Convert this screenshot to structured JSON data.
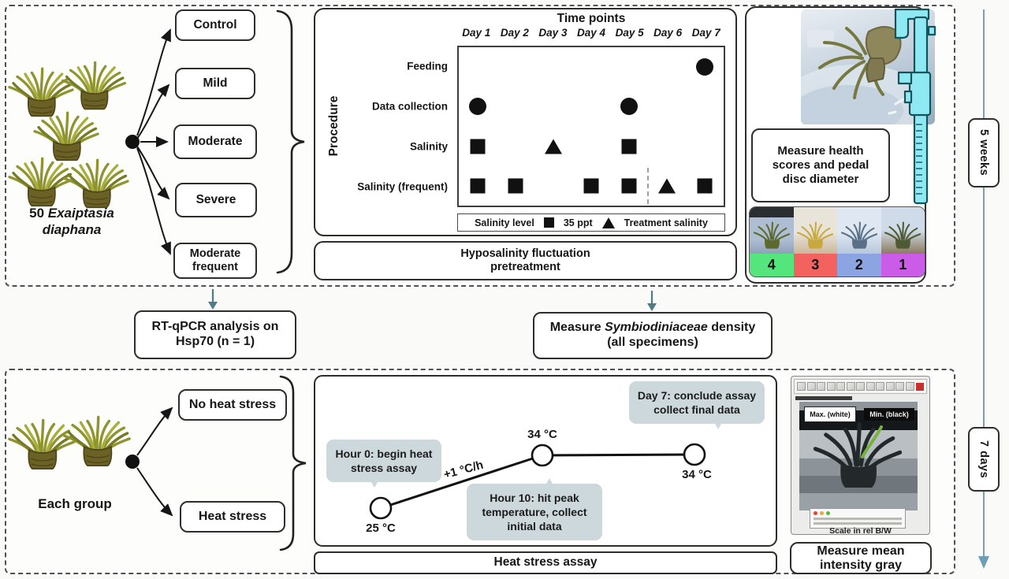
{
  "pretreatment": {
    "subject_count": "50",
    "species_line1": "Exaiptasia",
    "species_line2": "diaphana",
    "groups": [
      "Control",
      "Mild",
      "Moderate",
      "Severe",
      "Moderate frequent"
    ],
    "footer_line1": "Hyposalinity fluctuation",
    "footer_line2": "pretreatment"
  },
  "chart_data": [
    {
      "type": "scatter",
      "title": "Time points",
      "ylabel": "Procedure",
      "categories": [
        "Day 1",
        "Day 2",
        "Day 3",
        "Day 4",
        "Day 5",
        "Day 6",
        "Day 7"
      ],
      "rows": [
        "Feeding",
        "Data collection",
        "Salinity",
        "Salinity (frequent)"
      ],
      "marker_color": "#111111",
      "points": [
        {
          "row": "Feeding",
          "day": "Day 7",
          "marker": "circle"
        },
        {
          "row": "Data collection",
          "day": "Day 1",
          "marker": "circle"
        },
        {
          "row": "Data collection",
          "day": "Day 5",
          "marker": "circle"
        },
        {
          "row": "Salinity",
          "day": "Day 1",
          "marker": "square"
        },
        {
          "row": "Salinity",
          "day": "Day 3",
          "marker": "triangle"
        },
        {
          "row": "Salinity",
          "day": "Day 5",
          "marker": "square"
        },
        {
          "row": "Salinity (frequent)",
          "day": "Day 1",
          "marker": "square"
        },
        {
          "row": "Salinity (frequent)",
          "day": "Day 2",
          "marker": "square"
        },
        {
          "row": "Salinity (frequent)",
          "day": "Day 4",
          "marker": "square"
        },
        {
          "row": "Salinity (frequent)",
          "day": "Day 5",
          "marker": "square"
        },
        {
          "row": "Salinity (frequent)",
          "day": "Day 6",
          "marker": "triangle"
        },
        {
          "row": "Salinity (frequent)",
          "day": "Day 7",
          "marker": "square"
        }
      ],
      "divider": {
        "row": "Salinity (frequent)",
        "between": [
          "Day 5",
          "Day 6"
        ],
        "style": "dashed"
      },
      "legend": {
        "title": "Salinity level",
        "position": "bottom",
        "items": [
          {
            "marker": "square",
            "label": "35 ppt"
          },
          {
            "marker": "triangle",
            "label": "Treatment salinity"
          }
        ]
      }
    },
    {
      "type": "line",
      "title": "Heat stress assay",
      "x": [
        "Hour 0",
        "Hour 10",
        "Day 7"
      ],
      "y_temperature_c": [
        25,
        34,
        34
      ],
      "point_labels": [
        "25 °C",
        "34 °C",
        "34 °C"
      ],
      "ramp_annotation": "+1 °C/h"
    }
  ],
  "measure_health": {
    "caption_lines": [
      "Measure health",
      "scores and pedal",
      "disc diameter"
    ],
    "scores": [
      {
        "value": "4",
        "color": "#55e57d"
      },
      {
        "value": "3",
        "color": "#f2625f"
      },
      {
        "value": "2",
        "color": "#8da4e3"
      },
      {
        "value": "1",
        "color": "#cb5ce8"
      }
    ]
  },
  "interim": {
    "rtqpcr_line1": "RT-qPCR analysis on",
    "rtqpcr_line2": "Hsp70 (n = 1)",
    "density_prefix": "Measure ",
    "density_genus": "Symbiodiniaceae",
    "density_suffix": " density",
    "density_line2": "(all specimens)"
  },
  "duration": {
    "top": "5 weeks",
    "bottom": "7 days"
  },
  "heat": {
    "each_group": "Each group",
    "branch1": "No heat stress",
    "branch2": "Heat stress",
    "callout1_line1": "Hour 0: begin heat",
    "callout1_line2": "stress assay",
    "callout2_line1": "Hour 10: hit peak",
    "callout2_line2": "temperature, collect",
    "callout2_line3": "initial data",
    "callout3_line1": "Day 7: conclude assay",
    "callout3_line2": "collect final data",
    "temp_start": "25 °C",
    "temp_peak": "34 °C",
    "temp_end": "34 °C",
    "rate": "+1 °C/h",
    "footer": "Heat stress assay"
  },
  "imagej": {
    "max_label": "Max. (white)",
    "min_label": "Min. (black)",
    "scale_label": "Scale in rel B/W",
    "caption_line1": "Measure mean",
    "caption_line2": "intensity gray"
  },
  "colors": {
    "callout_fill": "#cdd8dc",
    "caliper": "#8ee9f2",
    "timeline_arrow": "#6f9fb8",
    "marker": "#111111"
  }
}
